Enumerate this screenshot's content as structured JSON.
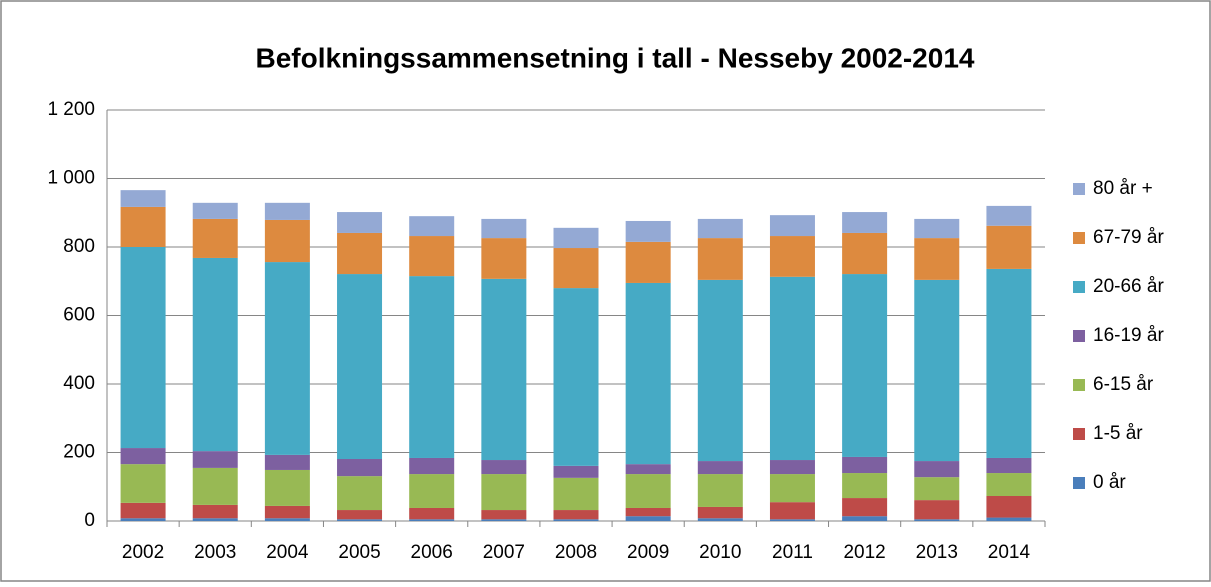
{
  "chart_data": {
    "type": "stacked-bar",
    "title": "Befolkningssammensetning i tall - Nesseby 2002-2014",
    "categories": [
      "2002",
      "2003",
      "2004",
      "2005",
      "2006",
      "2007",
      "2008",
      "2009",
      "2010",
      "2011",
      "2012",
      "2013",
      "2014"
    ],
    "series": [
      {
        "name": "0 år",
        "color": "#4a7ebb",
        "values": [
          8,
          8,
          8,
          5,
          5,
          5,
          5,
          14,
          8,
          5,
          14,
          5,
          10
        ]
      },
      {
        "name": "1-5 år",
        "color": "#be4b48",
        "values": [
          45,
          39,
          36,
          27,
          33,
          27,
          27,
          24,
          33,
          50,
          53,
          56,
          63
        ]
      },
      {
        "name": "6-15 år",
        "color": "#98b954",
        "values": [
          113,
          108,
          105,
          99,
          99,
          105,
          94,
          99,
          96,
          82,
          73,
          67,
          67
        ]
      },
      {
        "name": "16-19 år",
        "color": "#7d60a0",
        "values": [
          47,
          49,
          44,
          50,
          47,
          41,
          35,
          29,
          38,
          41,
          47,
          47,
          44
        ]
      },
      {
        "name": "20-66 år",
        "color": "#46aac5",
        "values": [
          587,
          564,
          563,
          540,
          531,
          529,
          519,
          529,
          529,
          535,
          534,
          529,
          552
        ]
      },
      {
        "name": "67-79 år",
        "color": "#dd8a3f",
        "values": [
          117,
          114,
          123,
          120,
          117,
          119,
          117,
          120,
          122,
          119,
          120,
          122,
          126
        ]
      },
      {
        "name": "80 år +",
        "color": "#94a9d4",
        "values": [
          49,
          47,
          50,
          61,
          58,
          56,
          59,
          61,
          56,
          61,
          61,
          56,
          58
        ]
      }
    ],
    "ylim": [
      0,
      1200
    ],
    "yticks": [
      0,
      200,
      400,
      600,
      800,
      {
        "value": 1000,
        "label": "1 000"
      },
      {
        "value": 1200,
        "label": "1 200"
      }
    ],
    "grid": true,
    "legend": "right"
  }
}
